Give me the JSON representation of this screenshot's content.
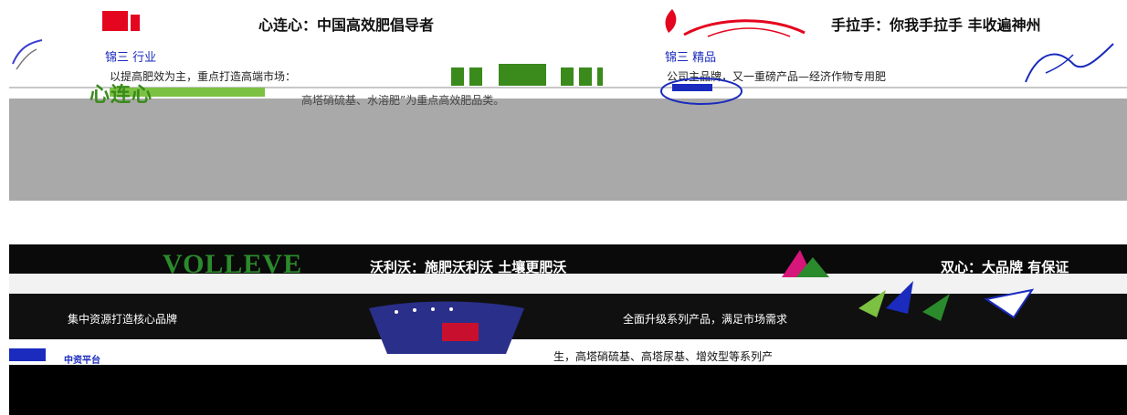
{
  "banner1": {
    "slogan_left": "心连心：中国高效肥倡导者",
    "slogan_right": "手拉手：你我手拉手 丰收遍神州",
    "left_section": {
      "heading": "锦三 行业",
      "desc_line1": "以提高肥效为主，重点打造高端市场：",
      "brand": "心连心",
      "desc_line2": "高塔硝硫基、水溶肥”为重点高效肥品类。"
    },
    "right_section": {
      "heading": "锦三 精品",
      "desc_line1": "公司主品牌，又一重磅产品—经济作物专用肥"
    },
    "colors": {
      "logo_red": "#e4051f",
      "heading_blue": "#1a2bbd",
      "brand_green": "#3a8a1c"
    }
  },
  "banner2": {
    "brand_name": "VOLLEVE",
    "slogan": "沃利沃：施肥沃利沃 土壤更肥沃",
    "slogan_right": "双心：大品牌 有保证",
    "sub_left": "集中资源打造核心品牌",
    "sub_right1": "全面升级系列产品，满足市场需求",
    "sub_right2": "生，高塔硝硫基、高塔尿基、增效型等系列产",
    "left_logo_text": "中资平台",
    "colors": {
      "volleve_green": "#2b8a2b"
    }
  }
}
